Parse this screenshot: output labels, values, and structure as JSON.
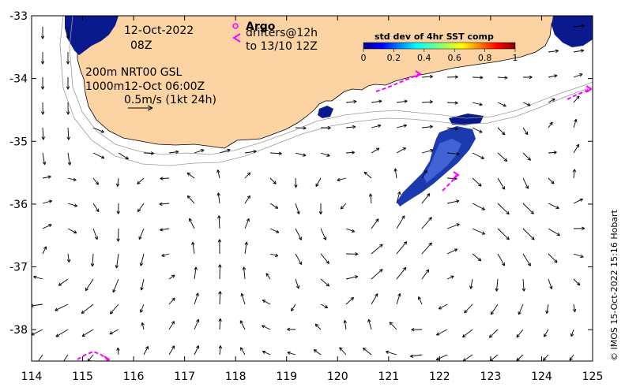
{
  "map": {
    "lon_ticks": [
      "114",
      "115",
      "116",
      "117",
      "118",
      "119",
      "120",
      "121",
      "122",
      "123",
      "124",
      "125"
    ],
    "lat_ticks": [
      "-33",
      "-34",
      "-35",
      "-36",
      "-37",
      "-38"
    ],
    "lon_range": [
      114,
      125
    ],
    "lat_range": [
      -38.5,
      -33
    ]
  },
  "labels": {
    "date": "12-Oct-2022",
    "time": "08Z",
    "contour_line1": "200m  NRT00 GSL",
    "contour_line2": "1000m12-Oct 06:00Z",
    "scale_label": "0.5m/s (1kt 24h)",
    "argo": "Argo",
    "drifters_line1": "drifters@12h",
    "drifters_line2": "to 13/10 12Z",
    "credit": "© IMOS 15-Oct-2022 15:16 Hobart"
  },
  "colorbar": {
    "title": "std dev of 4hr SST comp",
    "ticks": [
      "0",
      "0.2",
      "0.4",
      "0.6",
      "0.8",
      "1"
    ]
  },
  "colors": {
    "land": "#fcd4a4",
    "ocean": "#ffffff",
    "sst_dark": "#0a1a8c",
    "sst_light": "#4a6ee0",
    "drifter": "#ff00ff",
    "contour": "#9a9a9a"
  }
}
